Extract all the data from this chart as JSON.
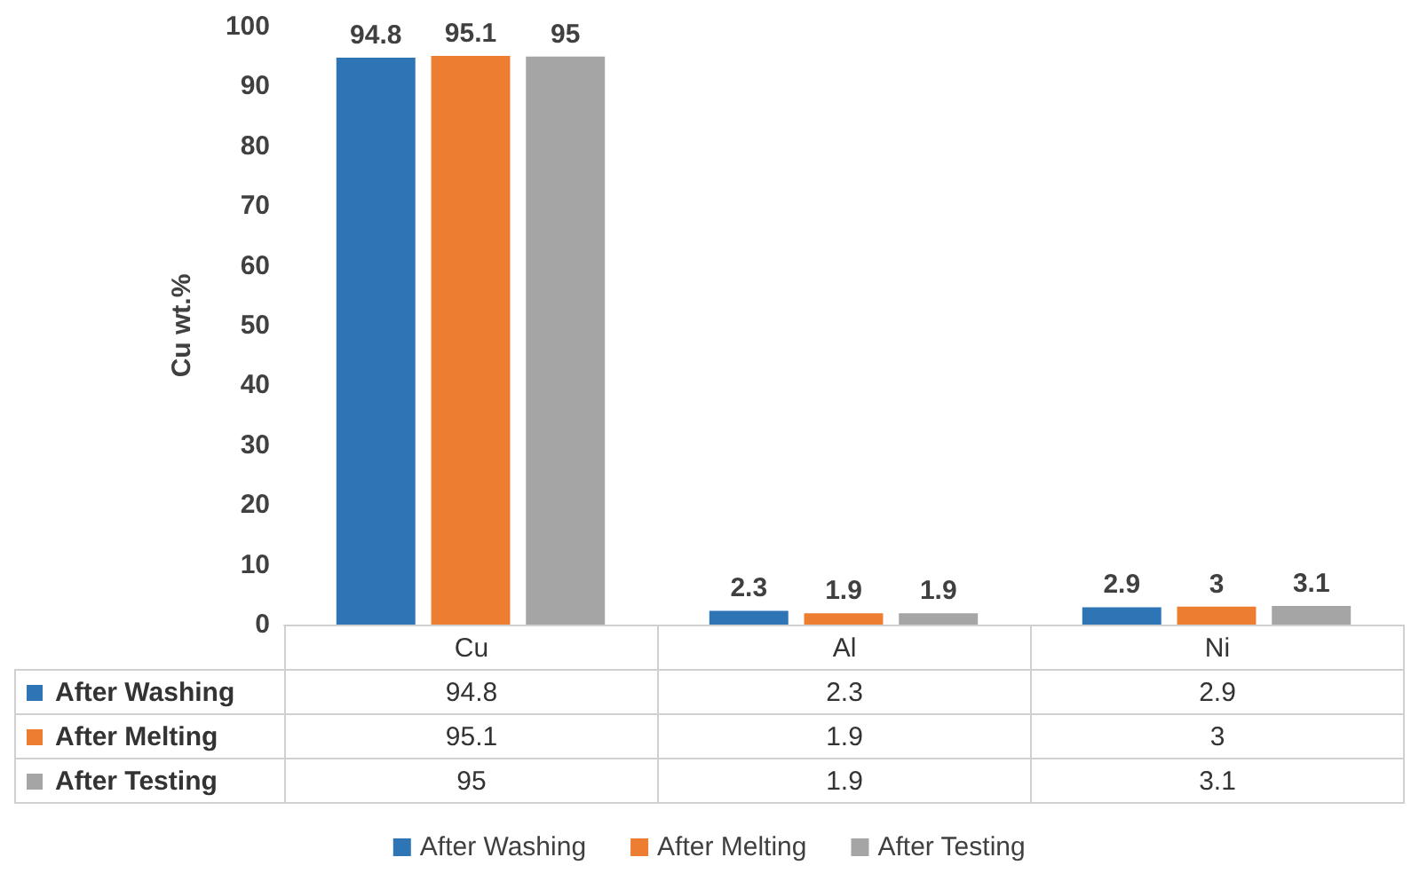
{
  "chart_data": [
    {
      "type": "bar",
      "ylabel": "Cu wt.%",
      "categories": [
        null,
        null,
        null
      ],
      "series": [
        {
          "name": "After Washing",
          "color": "#2e75b6",
          "values": [
            94.8,
            2.3,
            2.9
          ],
          "value_labels": [
            "94.8",
            "2.3",
            "2.9"
          ]
        },
        {
          "name": "After Melting",
          "color": "#ed7d31",
          "values": [
            95.1,
            1.9,
            3
          ],
          "value_labels": [
            "95.1",
            "1.9",
            "3"
          ]
        },
        {
          "name": "After Testing",
          "color": "#a5a5a5",
          "values": [
            95,
            1.9,
            3.1
          ],
          "value_labels": [
            "95",
            "1.9",
            "3.1"
          ]
        }
      ],
      "ylim": [
        0,
        100
      ],
      "yticks": [
        0,
        10,
        20,
        30,
        40,
        50,
        60,
        70,
        80,
        90,
        100
      ],
      "legend": "bottom",
      "grid": false,
      "tick_labels": "y"
    },
    {
      "type": "heatmap",
      "data_labels": true,
      "categories": [
        "Cu",
        "Al",
        "Ni"
      ],
      "y_categories": [
        "After Washing",
        "After Melting",
        "After Testing"
      ],
      "cells": [
        [
          94.8,
          2.3,
          2.9
        ],
        [
          95.1,
          1.9,
          3
        ],
        [
          95,
          1.9,
          3.1
        ]
      ]
    }
  ]
}
